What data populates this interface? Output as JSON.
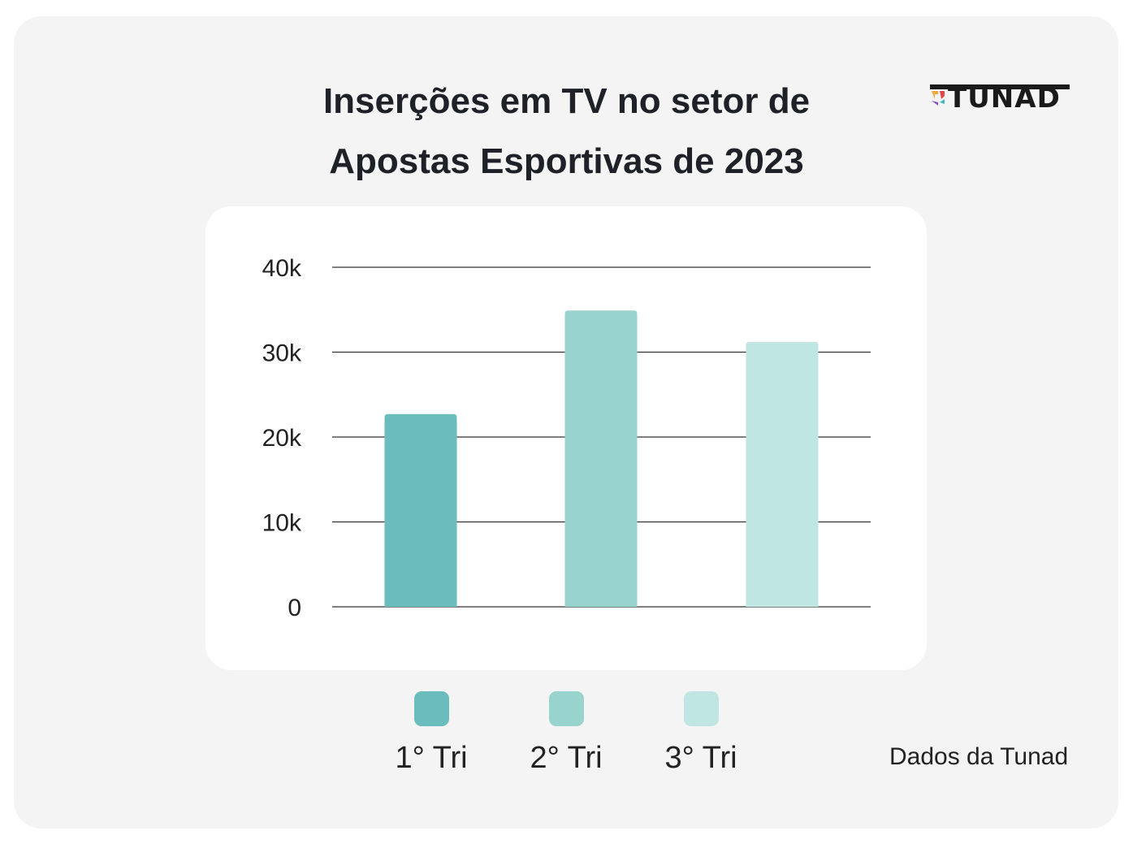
{
  "chart_data": {
    "type": "bar",
    "title": "Inserções em TV no setor de Apostas Esportivas de 2023",
    "title_lines": [
      "Inserções em TV no setor de",
      "Apostas Esportivas de 2023"
    ],
    "categories": [
      "1° Tri",
      "2° Tri",
      "3° Tri"
    ],
    "values": [
      22700,
      34900,
      31200
    ],
    "colors": [
      "#6abdbc",
      "#99d3ce",
      "#bfe6e2"
    ],
    "ylim": [
      0,
      40000
    ],
    "yticks": [
      0,
      10000,
      20000,
      30000,
      40000
    ],
    "ytick_labels": [
      "0",
      "10k",
      "20k",
      "30k",
      "40k"
    ],
    "grid": true,
    "legend_position": "bottom",
    "xlabel": "",
    "ylabel": ""
  },
  "brand": {
    "logo_text": "TUNAD"
  },
  "source": "Dados da Tunad"
}
